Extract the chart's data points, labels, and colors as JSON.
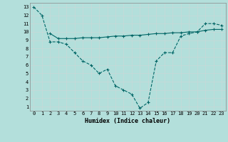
{
  "xlabel": "Humidex (Indice chaleur)",
  "bg_color": "#b3dfdb",
  "line_color": "#006666",
  "grid_color": "#c8d8d8",
  "xlim": [
    -0.5,
    23.5
  ],
  "ylim": [
    0.5,
    13.5
  ],
  "xticks": [
    0,
    1,
    2,
    3,
    4,
    5,
    6,
    7,
    8,
    9,
    10,
    11,
    12,
    13,
    14,
    15,
    16,
    17,
    18,
    19,
    20,
    21,
    22,
    23
  ],
  "yticks": [
    1,
    2,
    3,
    4,
    5,
    6,
    7,
    8,
    9,
    10,
    11,
    12,
    13
  ],
  "line1_x": [
    0,
    1,
    2,
    3,
    4,
    5,
    6,
    7,
    8,
    9,
    10,
    11,
    12,
    13,
    14,
    15,
    16,
    17,
    18,
    19,
    20,
    21,
    22,
    23
  ],
  "line1_y": [
    13,
    12,
    8.8,
    8.8,
    8.5,
    7.5,
    6.5,
    6.0,
    5.0,
    5.5,
    3.5,
    3.0,
    2.5,
    0.8,
    1.5,
    6.5,
    7.5,
    7.5,
    9.5,
    9.8,
    10.0,
    11.0,
    11.0,
    10.8
  ],
  "line2_x": [
    2,
    3,
    4,
    5,
    6,
    7,
    8,
    9,
    10,
    11,
    12,
    13,
    14,
    15,
    16,
    17,
    18,
    19,
    20,
    21,
    22,
    23
  ],
  "line2_y": [
    9.8,
    9.2,
    9.2,
    9.2,
    9.3,
    9.3,
    9.3,
    9.4,
    9.5,
    9.5,
    9.6,
    9.6,
    9.7,
    9.8,
    9.8,
    9.9,
    9.9,
    10.0,
    10.0,
    10.2,
    10.3,
    10.3
  ]
}
